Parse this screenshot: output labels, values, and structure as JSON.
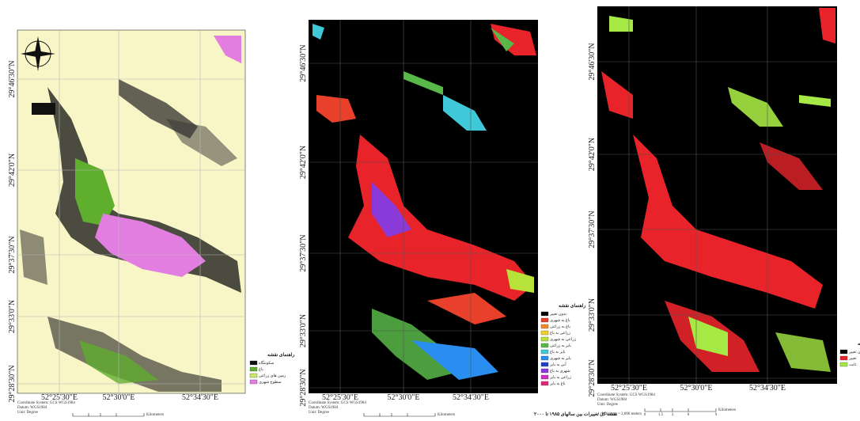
{
  "maps": [
    {
      "lat_labels": [
        "29°46'30\"N",
        "29°42'0\"N",
        "29°37'30\"N",
        "29°33'0\"N",
        "29°28'30\"N"
      ],
      "lon_labels": [
        "52°25'30\"E",
        "52°30'0\"E",
        "52°34'30\"E"
      ],
      "legend": {
        "title": "راهنمای نقشه",
        "items": [
          {
            "label": "سکونتگاه",
            "color": "#111111"
          },
          {
            "label": "باغ",
            "color": "#5fae2e"
          },
          {
            "label": "زمین های زراعی",
            "color": "#c8e86a"
          },
          {
            "label": "سطوح شهری",
            "color": "#e27ee0"
          }
        ]
      },
      "metadata": [
        "Coordinate System: GCS WGS1984",
        "Datum: WGS1984",
        "Unit: Degree"
      ],
      "scale_label": "Kilometers"
    },
    {
      "lat_labels": [
        "29°46'30\"N",
        "29°42'0\"N",
        "29°37'30\"N",
        "29°33'0\"N",
        "29°28'30\"N"
      ],
      "lon_labels": [
        "52°25'30\"E",
        "52°30'0\"E",
        "52°34'30\"E"
      ],
      "legend": {
        "title": "راهنمای نقشه",
        "items": [
          {
            "label": "بدون تغییر",
            "color": "#000000"
          },
          {
            "label": "باغ به شهری",
            "color": "#e8402a"
          },
          {
            "label": "باغ به زراعی",
            "color": "#f08a2c"
          },
          {
            "label": "زراعی به باغ",
            "color": "#f2d02a"
          },
          {
            "label": "زراعی به شهری",
            "color": "#b6e23a"
          },
          {
            "label": "بایر به زراعی",
            "color": "#58b848"
          },
          {
            "label": "بایر به باغ",
            "color": "#3fc8d8"
          },
          {
            "label": "بایر به شهری",
            "color": "#2a8ef0"
          },
          {
            "label": "آبی به بایر",
            "color": "#2040c8"
          },
          {
            "label": "شهری به باغ",
            "color": "#8a3ad8"
          },
          {
            "label": "زراعی به بایر",
            "color": "#d030c0"
          },
          {
            "label": "باغ به بایر",
            "color": "#e0287a"
          }
        ]
      },
      "metadata": [
        "Coordinate System: GCS WGS1984",
        "Datum: WGS1984",
        "Unit: Degree"
      ],
      "scale_label": "Kilometers",
      "caption": "نقشه کل تغییرات بین سالهای ۱۹۸۵ تا ۲۰۰۰"
    },
    {
      "lat_labels": [
        "29°46'30\"N",
        "29°42'0\"N",
        "29°37'30\"N",
        "29°33'0\"N",
        "29°28'30\"N"
      ],
      "lon_labels": [
        "52°25'30\"E",
        "52°30'0\"E",
        "52°34'30\"E"
      ],
      "legend": {
        "title": "راهنمای نقشه",
        "items": [
          {
            "label": "بدون تغییر",
            "color": "#000000"
          },
          {
            "label": "تغییر",
            "color": "#e8242a"
          },
          {
            "label": "ثابت",
            "color": "#a6e844"
          }
        ]
      },
      "metadata": [
        "Coordinate System: GCS WGS1984",
        "Datum: WGS1984",
        "Unit: Degree"
      ],
      "scale_text": "1 centimeter = 2,000 meters",
      "scale_ticks": [
        "0",
        "1.5",
        "3",
        "6",
        "9"
      ],
      "scale_label": "Kilometers"
    }
  ]
}
